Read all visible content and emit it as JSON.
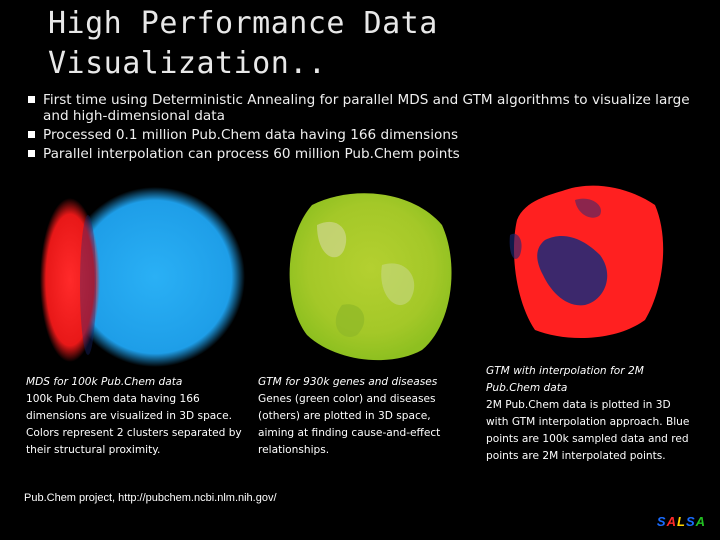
{
  "slide": {
    "title_line1": "High Performance Data",
    "title_line2": "Visualization..",
    "bullets": [
      "First time using Deterministic Annealing for parallel MDS and GTM algorithms to visualize large and high-dimensional data",
      "Processed 0.1 million Pub.Chem data having 166 dimensions",
      "Parallel interpolation can process 60 million Pub.Chem points"
    ]
  },
  "panels": [
    {
      "caption_title": "MDS for 100k Pub.Chem data",
      "caption_body": "100k Pub.Chem data having 166 dimensions are visualized in 3D space. Colors represent 2 clusters separated by their structural proximity."
    },
    {
      "caption_title": "GTM for 930k genes and diseases",
      "caption_body": "Genes (green color) and diseases (others) are plotted in 3D space, aiming at finding cause-and-effect relationships."
    },
    {
      "caption_title": "GTM with interpolation for 2M Pub.Chem data",
      "caption_body": "2M Pub.Chem data is plotted in 3D with GTM interpolation approach. Blue points are 100k sampled data and red points are 2M interpolated points."
    }
  ],
  "footer": {
    "text": "Pub.Chem project, http://pubchem.ncbi.nlm.nih.gov/"
  },
  "logo": {
    "letters": [
      "S",
      "A",
      "L",
      "S",
      "A"
    ],
    "colors": [
      "#1a6cff",
      "#ff2a2a",
      "#ffd400",
      "#1a6cff",
      "#22c022"
    ]
  },
  "colors": {
    "red_cluster": "#ff2020",
    "blue_cluster": "#1ea8f0",
    "green_cluster": "#a8cc28",
    "dark_blue": "#1a2a7a"
  }
}
